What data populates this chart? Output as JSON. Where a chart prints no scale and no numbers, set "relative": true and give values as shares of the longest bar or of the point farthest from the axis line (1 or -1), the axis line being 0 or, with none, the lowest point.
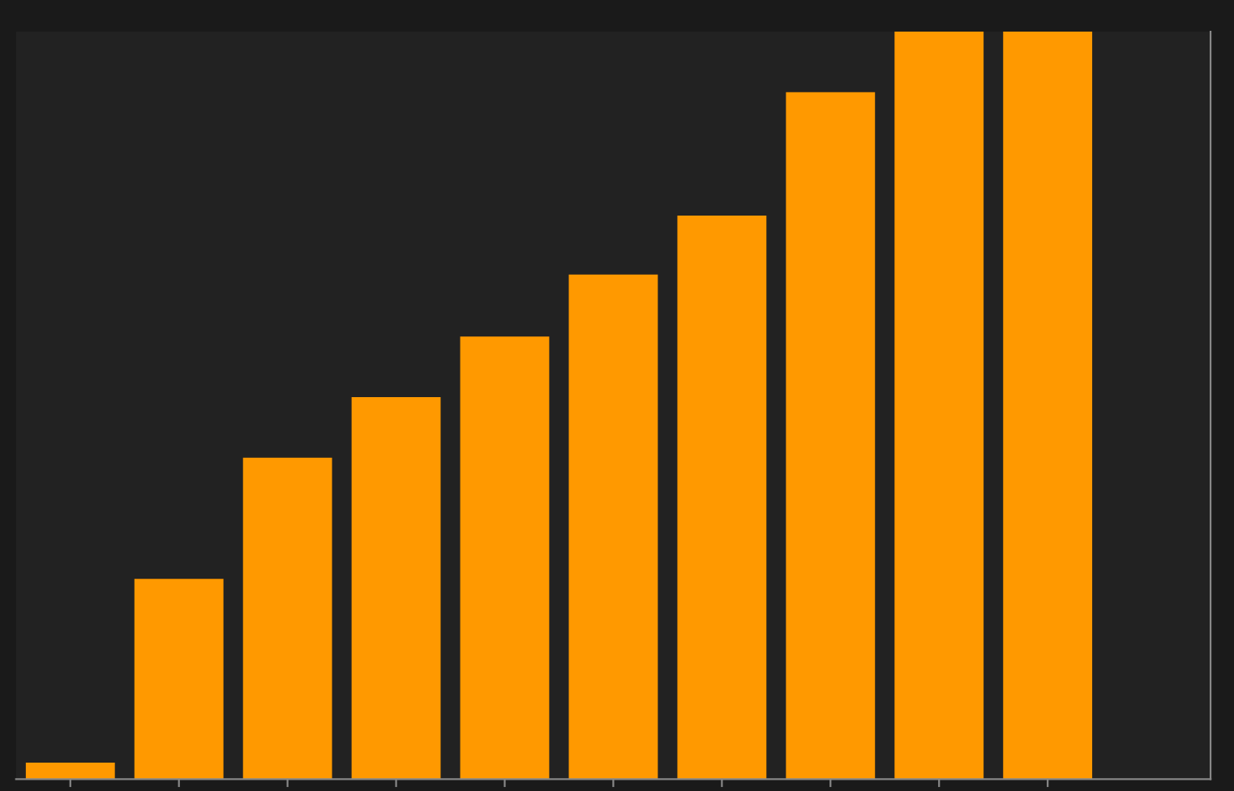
{
  "chart_data": {
    "type": "bar",
    "relative": true,
    "categories": [
      null,
      null,
      null,
      null,
      null,
      null,
      null,
      null,
      null,
      null
    ],
    "values": [
      0.022,
      0.268,
      0.43,
      0.511,
      0.592,
      0.675,
      0.754,
      0.919,
      1,
      1
    ],
    "color": "#ff9900",
    "grid": false,
    "legend": false
  }
}
